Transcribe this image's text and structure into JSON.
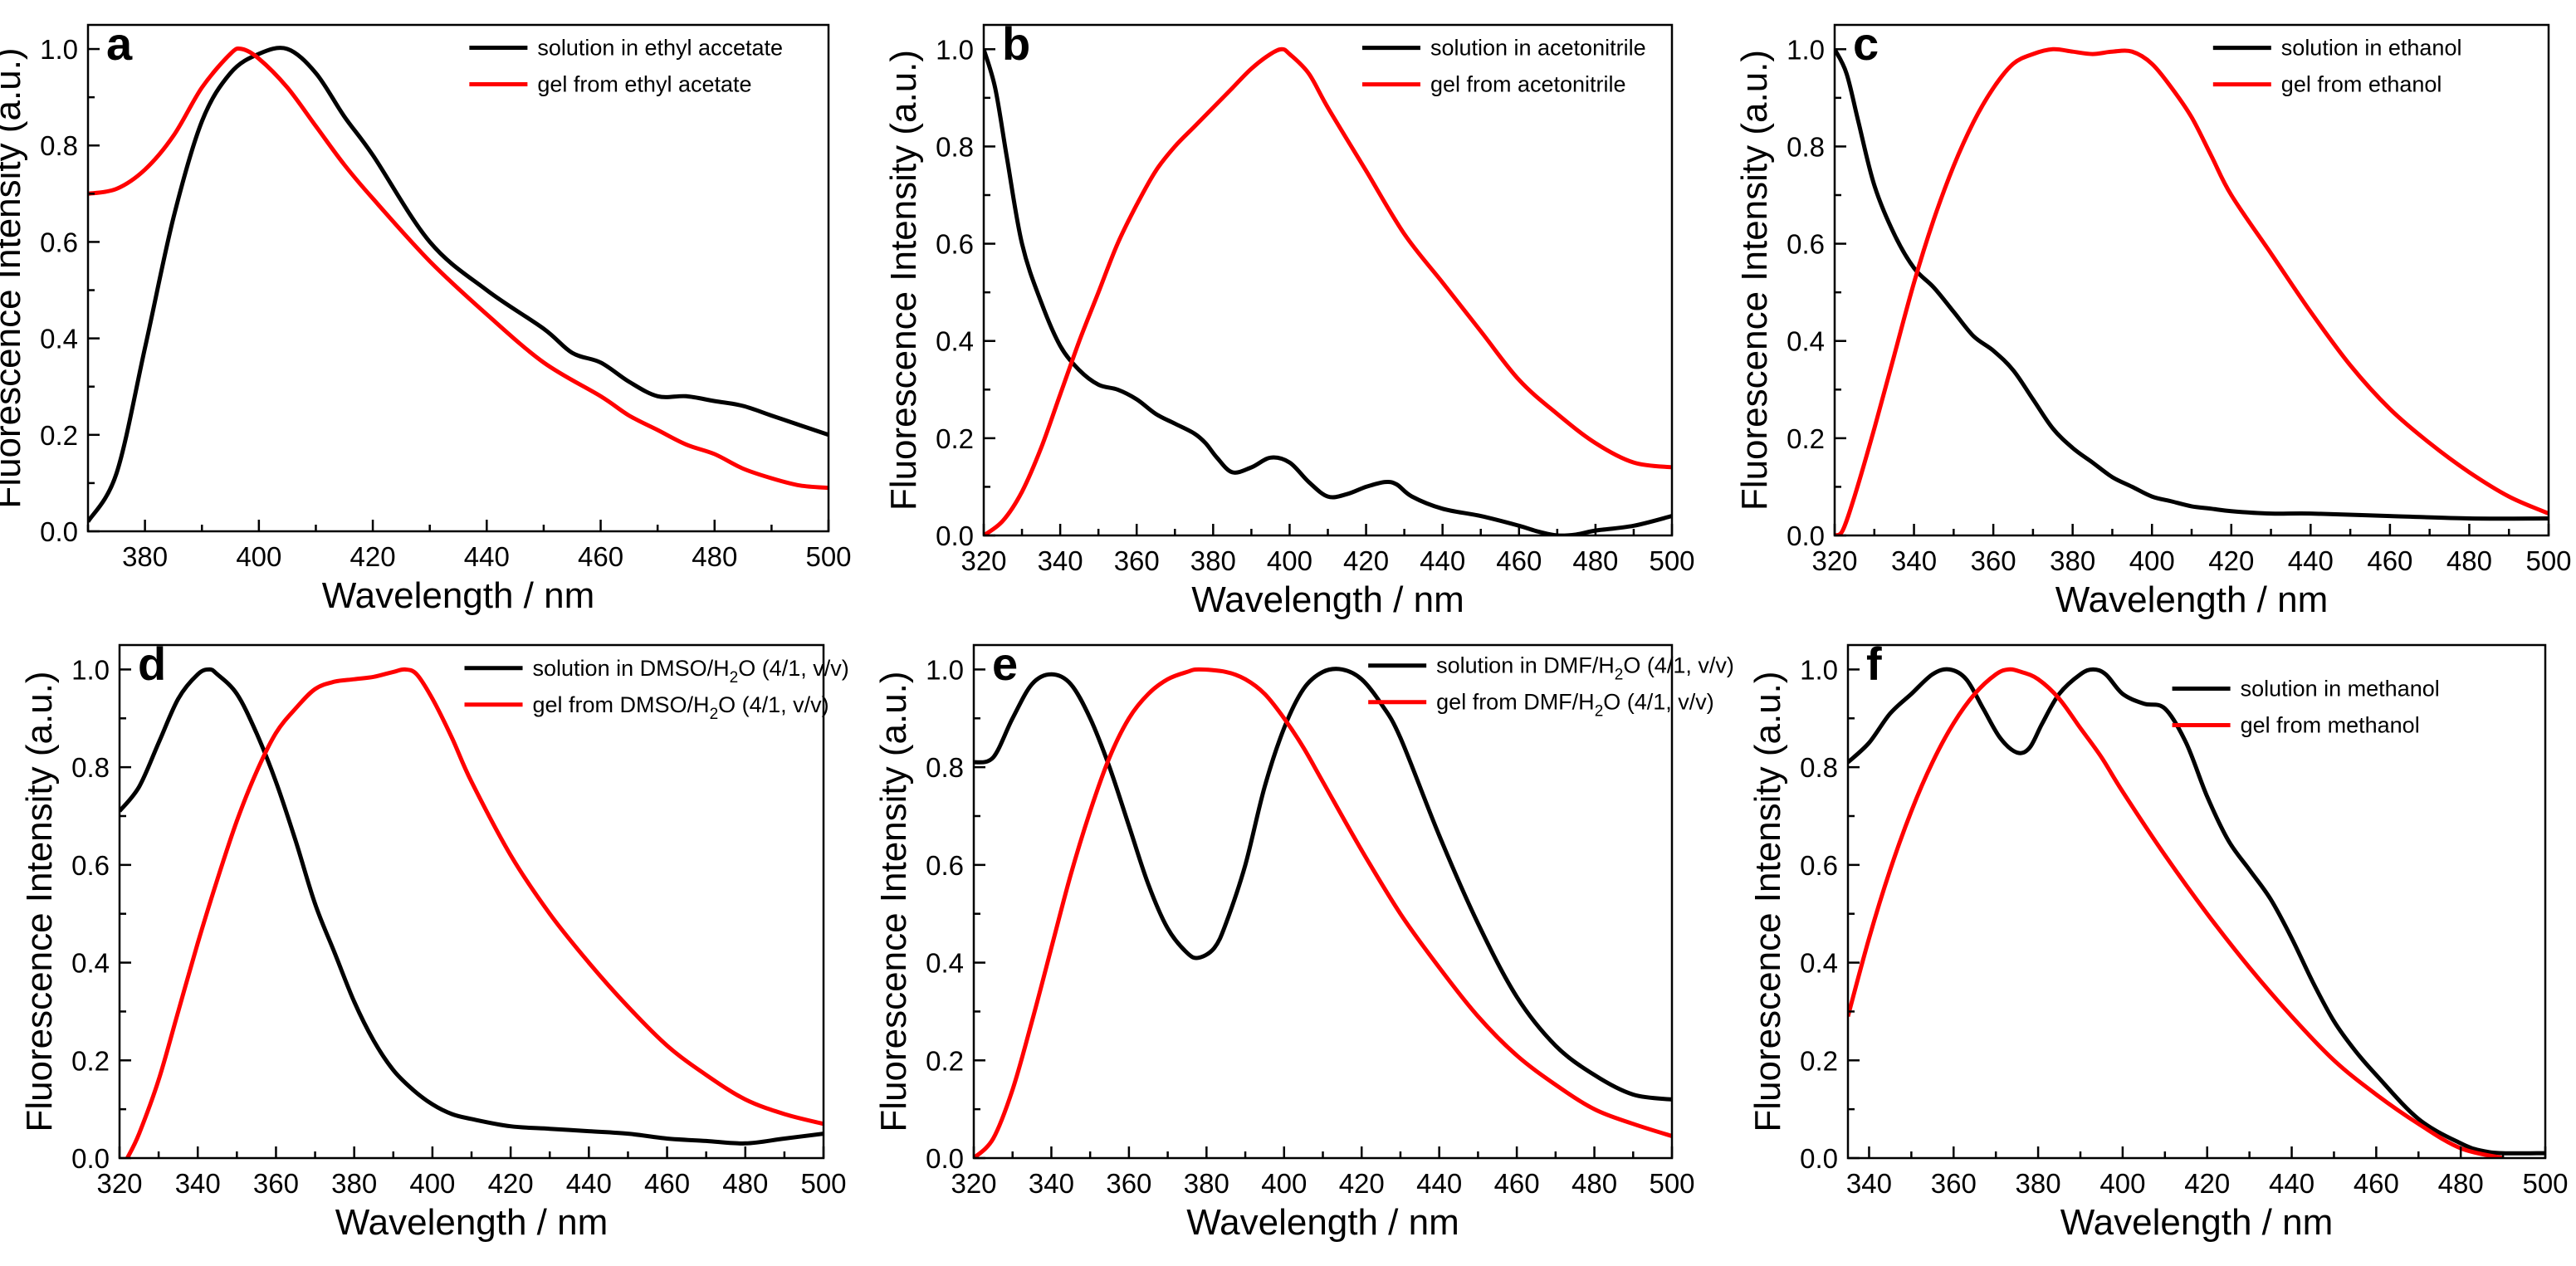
{
  "figure": {
    "colors": {
      "solution": "#000000",
      "gel": "#ff0000",
      "axis": "#000000",
      "background": "#ffffff"
    }
  },
  "chart_data": [
    {
      "type": "line",
      "panel": "a",
      "xlabel": "Wavelength / nm",
      "ylabel": "Fluorescence Intensity (a.u.)",
      "xlim": [
        370,
        500
      ],
      "ylim": [
        0,
        1.05
      ],
      "xticks": [
        380,
        400,
        420,
        440,
        460,
        480,
        500
      ],
      "xticklabels": [
        "380",
        "400",
        "420",
        "440",
        "460",
        "480",
        "500"
      ],
      "yticks": [
        0,
        0.2,
        0.4,
        0.6,
        0.8,
        1.0
      ],
      "yticklabels": [
        "0.0",
        "0.2",
        "0.4",
        "0.6",
        "0.8",
        "1.0"
      ],
      "legend_position": "top-right",
      "series": [
        {
          "name": "solution in ethyl accetate",
          "color": "#000000",
          "x": [
            370,
            375,
            380,
            385,
            390,
            395,
            400,
            405,
            410,
            415,
            420,
            430,
            440,
            450,
            455,
            460,
            465,
            470,
            475,
            480,
            485,
            490,
            495,
            500
          ],
          "y": [
            0.02,
            0.12,
            0.38,
            0.65,
            0.85,
            0.95,
            0.99,
            1.0,
            0.95,
            0.86,
            0.78,
            0.6,
            0.5,
            0.42,
            0.37,
            0.35,
            0.31,
            0.28,
            0.28,
            0.27,
            0.26,
            0.24,
            0.22,
            0.2
          ]
        },
        {
          "name": "gel from ethyl acetate",
          "color": "#ff0000",
          "x": [
            370,
            375,
            380,
            385,
            390,
            395,
            397,
            400,
            405,
            410,
            415,
            420,
            430,
            440,
            450,
            460,
            465,
            470,
            475,
            480,
            485,
            490,
            495,
            500
          ],
          "y": [
            0.7,
            0.71,
            0.75,
            0.82,
            0.92,
            0.99,
            1.0,
            0.98,
            0.92,
            0.84,
            0.76,
            0.69,
            0.56,
            0.45,
            0.35,
            0.28,
            0.24,
            0.21,
            0.18,
            0.16,
            0.13,
            0.11,
            0.095,
            0.09
          ]
        }
      ]
    },
    {
      "type": "line",
      "panel": "b",
      "xlabel": "Wavelength / nm",
      "ylabel": "Fluorescence Intensity (a.u.)",
      "xlim": [
        320,
        500
      ],
      "ylim": [
        0,
        1.05
      ],
      "xticks": [
        320,
        340,
        360,
        380,
        400,
        420,
        440,
        460,
        480,
        500
      ],
      "xticklabels": [
        "320",
        "340",
        "360",
        "380",
        "400",
        "420",
        "440",
        "460",
        "480",
        "500"
      ],
      "yticks": [
        0,
        0.2,
        0.4,
        0.6,
        0.8,
        1.0
      ],
      "yticklabels": [
        "0.0",
        "0.2",
        "0.4",
        "0.6",
        "0.8",
        "1.0"
      ],
      "legend_position": "top-right",
      "series": [
        {
          "name": "solution in acetonitrile",
          "color": "#000000",
          "x": [
            320,
            323,
            326,
            330,
            335,
            340,
            345,
            350,
            355,
            360,
            365,
            370,
            375,
            378,
            381,
            385,
            390,
            395,
            400,
            405,
            410,
            415,
            420,
            425,
            428,
            432,
            440,
            450,
            460,
            465,
            470,
            475,
            480,
            490,
            500
          ],
          "y": [
            1.0,
            0.92,
            0.78,
            0.6,
            0.48,
            0.39,
            0.34,
            0.31,
            0.3,
            0.28,
            0.25,
            0.23,
            0.21,
            0.19,
            0.16,
            0.13,
            0.14,
            0.16,
            0.15,
            0.11,
            0.08,
            0.085,
            0.1,
            0.11,
            0.105,
            0.08,
            0.055,
            0.04,
            0.02,
            0.008,
            0.0,
            0.002,
            0.01,
            0.02,
            0.04
          ]
        },
        {
          "name": "gel from acetonitrile",
          "color": "#ff0000",
          "x": [
            320,
            325,
            330,
            335,
            340,
            345,
            350,
            355,
            360,
            365,
            370,
            375,
            380,
            385,
            390,
            395,
            398,
            400,
            405,
            410,
            420,
            430,
            440,
            450,
            460,
            470,
            480,
            490,
            500
          ],
          "y": [
            0.0,
            0.03,
            0.09,
            0.18,
            0.29,
            0.4,
            0.5,
            0.6,
            0.68,
            0.75,
            0.8,
            0.84,
            0.88,
            0.92,
            0.96,
            0.99,
            1.0,
            0.99,
            0.95,
            0.88,
            0.75,
            0.62,
            0.52,
            0.42,
            0.32,
            0.25,
            0.19,
            0.15,
            0.14
          ]
        }
      ]
    },
    {
      "type": "line",
      "panel": "c",
      "xlabel": "Wavelength / nm",
      "ylabel": "Fluorescence Intensity (a.u.)",
      "xlim": [
        320,
        500
      ],
      "ylim": [
        0,
        1.05
      ],
      "xticks": [
        320,
        340,
        360,
        380,
        400,
        420,
        440,
        460,
        480,
        500
      ],
      "xticklabels": [
        "320",
        "340",
        "360",
        "380",
        "400",
        "420",
        "440",
        "460",
        "480",
        "500"
      ],
      "yticks": [
        0,
        0.2,
        0.4,
        0.6,
        0.8,
        1.0
      ],
      "yticklabels": [
        "0.0",
        "0.2",
        "0.4",
        "0.6",
        "0.8",
        "1.0"
      ],
      "legend_position": "top-right",
      "series": [
        {
          "name": "solution in ethanol",
          "color": "#000000",
          "x": [
            320,
            323,
            326,
            330,
            335,
            340,
            345,
            350,
            355,
            360,
            365,
            370,
            375,
            380,
            385,
            390,
            395,
            400,
            405,
            410,
            415,
            420,
            430,
            440,
            460,
            480,
            500
          ],
          "y": [
            1.0,
            0.95,
            0.85,
            0.72,
            0.62,
            0.55,
            0.51,
            0.46,
            0.41,
            0.38,
            0.34,
            0.28,
            0.22,
            0.18,
            0.15,
            0.12,
            0.1,
            0.08,
            0.07,
            0.06,
            0.055,
            0.05,
            0.045,
            0.045,
            0.04,
            0.035,
            0.035
          ]
        },
        {
          "name": "gel from ethanol",
          "color": "#ff0000",
          "x": [
            320,
            322,
            325,
            330,
            335,
            340,
            345,
            350,
            355,
            360,
            365,
            370,
            375,
            380,
            385,
            390,
            395,
            400,
            405,
            410,
            415,
            420,
            430,
            440,
            450,
            460,
            470,
            480,
            490,
            500
          ],
          "y": [
            0.0,
            0.01,
            0.08,
            0.22,
            0.37,
            0.52,
            0.65,
            0.76,
            0.85,
            0.92,
            0.97,
            0.99,
            1.0,
            0.995,
            0.99,
            0.995,
            0.995,
            0.97,
            0.92,
            0.86,
            0.78,
            0.7,
            0.58,
            0.46,
            0.35,
            0.26,
            0.19,
            0.13,
            0.08,
            0.045
          ]
        }
      ]
    },
    {
      "type": "line",
      "panel": "d",
      "xlabel": "Wavelength / nm",
      "ylabel": "Fluorescence Intensity (a.u.)",
      "xlim": [
        320,
        500
      ],
      "ylim": [
        0,
        1.05
      ],
      "xticks": [
        320,
        340,
        360,
        380,
        400,
        420,
        440,
        460,
        480,
        500
      ],
      "xticklabels": [
        "320",
        "340",
        "360",
        "380",
        "400",
        "420",
        "440",
        "460",
        "480",
        "500"
      ],
      "yticks": [
        0,
        0.2,
        0.4,
        0.6,
        0.8,
        1.0
      ],
      "yticklabels": [
        "0.0",
        "0.2",
        "0.4",
        "0.6",
        "0.8",
        "1.0"
      ],
      "legend_position": "top-right",
      "series": [
        {
          "name": "solution in DMSO/H2O (4/1, v/v)",
          "label_parts": [
            "solution in DMSO/H",
            "2",
            "O (4/1, v/v)"
          ],
          "color": "#000000",
          "x": [
            320,
            325,
            330,
            335,
            340,
            343,
            345,
            350,
            355,
            360,
            365,
            370,
            375,
            380,
            385,
            390,
            395,
            400,
            405,
            410,
            420,
            430,
            440,
            450,
            460,
            470,
            480,
            490,
            500
          ],
          "y": [
            0.71,
            0.76,
            0.85,
            0.94,
            0.99,
            1.0,
            0.99,
            0.95,
            0.87,
            0.77,
            0.65,
            0.52,
            0.42,
            0.32,
            0.24,
            0.18,
            0.14,
            0.11,
            0.09,
            0.08,
            0.065,
            0.06,
            0.055,
            0.05,
            0.04,
            0.035,
            0.03,
            0.04,
            0.05
          ]
        },
        {
          "name": "gel from DMSO/H2O (4/1, v/v)",
          "label_parts": [
            "gel from DMSO/H",
            "2",
            "O (4/1, v/v)"
          ],
          "color": "#ff0000",
          "x": [
            322,
            325,
            330,
            335,
            340,
            345,
            350,
            355,
            360,
            365,
            370,
            375,
            380,
            385,
            390,
            393,
            396,
            400,
            405,
            410,
            420,
            430,
            440,
            450,
            460,
            470,
            480,
            490,
            500
          ],
          "y": [
            0.0,
            0.05,
            0.16,
            0.3,
            0.44,
            0.57,
            0.69,
            0.79,
            0.87,
            0.92,
            0.96,
            0.975,
            0.98,
            0.985,
            0.995,
            1.0,
            0.99,
            0.94,
            0.86,
            0.77,
            0.62,
            0.5,
            0.4,
            0.31,
            0.23,
            0.17,
            0.12,
            0.09,
            0.07
          ]
        }
      ]
    },
    {
      "type": "line",
      "panel": "e",
      "xlabel": "Wavelength / nm",
      "ylabel": "Fluorescence Intensity (a.u.)",
      "xlim": [
        320,
        500
      ],
      "ylim": [
        0,
        1.05
      ],
      "xticks": [
        320,
        340,
        360,
        380,
        400,
        420,
        440,
        460,
        480,
        500
      ],
      "xticklabels": [
        "320",
        "340",
        "360",
        "380",
        "400",
        "420",
        "440",
        "460",
        "480",
        "500"
      ],
      "yticks": [
        0,
        0.2,
        0.4,
        0.6,
        0.8,
        1.0
      ],
      "yticklabels": [
        "0.0",
        "0.2",
        "0.4",
        "0.6",
        "0.8",
        "1.0"
      ],
      "legend_position": "top-right",
      "series": [
        {
          "name": "solution in DMF/H2O (4/1, v/v)",
          "label_parts": [
            "solution in DMF/H",
            "2",
            "O (4/1, v/v)"
          ],
          "color": "#000000",
          "x": [
            320,
            325,
            330,
            335,
            340,
            345,
            350,
            355,
            360,
            365,
            370,
            375,
            378,
            382,
            385,
            390,
            395,
            400,
            405,
            410,
            415,
            420,
            425,
            430,
            440,
            450,
            460,
            470,
            480,
            490,
            500
          ],
          "y": [
            0.81,
            0.82,
            0.9,
            0.97,
            0.99,
            0.97,
            0.9,
            0.8,
            0.68,
            0.56,
            0.47,
            0.42,
            0.41,
            0.43,
            0.48,
            0.6,
            0.76,
            0.88,
            0.96,
            0.995,
            1.0,
            0.98,
            0.93,
            0.86,
            0.66,
            0.48,
            0.33,
            0.23,
            0.17,
            0.13,
            0.12
          ]
        },
        {
          "name": "gel from DMF/H2O (4/1, v/v)",
          "label_parts": [
            "gel from DMF/H",
            "2",
            "O (4/1, v/v)"
          ],
          "color": "#ff0000",
          "x": [
            320,
            325,
            330,
            335,
            340,
            345,
            350,
            355,
            360,
            365,
            370,
            375,
            378,
            385,
            390,
            395,
            400,
            405,
            410,
            420,
            430,
            440,
            450,
            460,
            470,
            480,
            490,
            500
          ],
          "y": [
            0.0,
            0.04,
            0.14,
            0.28,
            0.43,
            0.58,
            0.71,
            0.82,
            0.9,
            0.95,
            0.98,
            0.995,
            1.0,
            0.995,
            0.98,
            0.95,
            0.9,
            0.84,
            0.77,
            0.63,
            0.5,
            0.39,
            0.29,
            0.21,
            0.15,
            0.1,
            0.07,
            0.045
          ]
        }
      ]
    },
    {
      "type": "line",
      "panel": "f",
      "xlabel": "Wavelength / nm",
      "ylabel": "Fluorescence Intensity (a.u.)",
      "xlim": [
        335,
        500
      ],
      "ylim": [
        0,
        1.05
      ],
      "xticks": [
        340,
        360,
        380,
        400,
        420,
        440,
        460,
        480,
        500
      ],
      "xticklabels": [
        "340",
        "360",
        "380",
        "400",
        "420",
        "440",
        "460",
        "480",
        "500"
      ],
      "yticks": [
        0,
        0.2,
        0.4,
        0.6,
        0.8,
        1.0
      ],
      "yticklabels": [
        "0.0",
        "0.2",
        "0.4",
        "0.6",
        "0.8",
        "1.0"
      ],
      "legend_position": "top-right",
      "series": [
        {
          "name": "solution in methanol",
          "color": "#000000",
          "x": [
            335,
            340,
            345,
            350,
            355,
            359,
            363,
            367,
            371,
            375,
            378,
            381,
            385,
            390,
            393,
            396,
            400,
            405,
            410,
            415,
            420,
            425,
            430,
            435,
            440,
            445,
            450,
            455,
            460,
            470,
            480,
            485,
            490,
            500
          ],
          "y": [
            0.81,
            0.85,
            0.91,
            0.95,
            0.99,
            1.0,
            0.98,
            0.92,
            0.86,
            0.83,
            0.84,
            0.89,
            0.95,
            0.99,
            1.0,
            0.99,
            0.95,
            0.93,
            0.92,
            0.85,
            0.74,
            0.65,
            0.59,
            0.53,
            0.45,
            0.36,
            0.28,
            0.22,
            0.17,
            0.08,
            0.03,
            0.015,
            0.01,
            0.01
          ]
        },
        {
          "name": "gel from methanol",
          "color": "#ff0000",
          "x": [
            335,
            340,
            345,
            350,
            355,
            360,
            365,
            370,
            373,
            376,
            380,
            385,
            390,
            395,
            400,
            410,
            420,
            430,
            440,
            450,
            460,
            470,
            480,
            490
          ],
          "y": [
            0.29,
            0.45,
            0.59,
            0.71,
            0.81,
            0.89,
            0.95,
            0.99,
            1.0,
            0.995,
            0.98,
            0.94,
            0.88,
            0.82,
            0.75,
            0.62,
            0.5,
            0.39,
            0.29,
            0.2,
            0.13,
            0.07,
            0.02,
            0.0
          ]
        }
      ]
    }
  ]
}
